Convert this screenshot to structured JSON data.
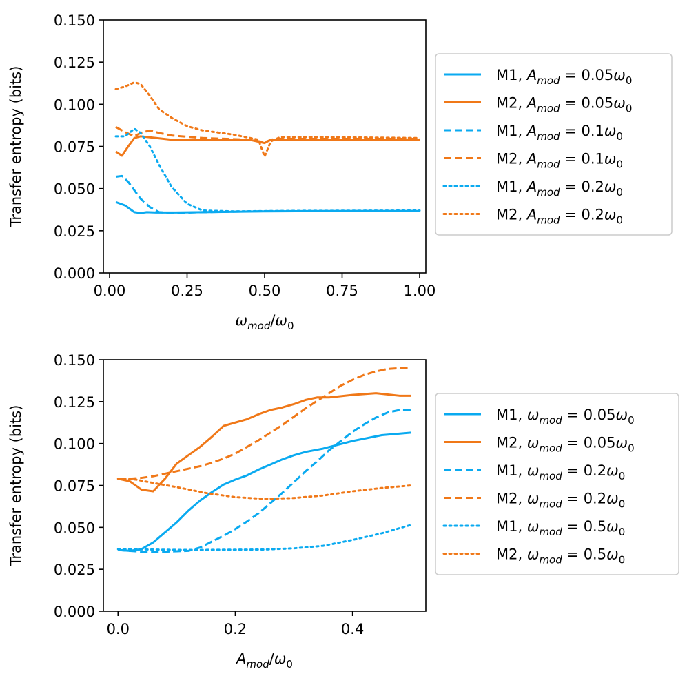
{
  "chart_data": [
    {
      "type": "line",
      "xlabel": "ω_mod/ω_0",
      "ylabel": "Transfer entropy (bits)",
      "xlim": [
        -0.02,
        1.02
      ],
      "ylim": [
        0,
        0.15
      ],
      "xticks": [
        0.0,
        0.25,
        0.5,
        0.75,
        1.0
      ],
      "xtick_labels": [
        "0.00",
        "0.25",
        "0.50",
        "0.75",
        "1.00"
      ],
      "yticks": [
        0.0,
        0.025,
        0.05,
        0.075,
        0.1,
        0.125,
        0.15
      ],
      "ytick_labels": [
        "0.000",
        "0.025",
        "0.050",
        "0.075",
        "0.100",
        "0.125",
        "0.150"
      ],
      "grid": false,
      "legend_position": "outside-right",
      "series": [
        {
          "name": "M1, A_mod = 0.05ω_0",
          "legend_prefix": "M1, ",
          "legend_var": "A",
          "legend_sub": "mod",
          "legend_val": "0.05",
          "color": "#0aaaf0",
          "style": "solid",
          "x": [
            0.02,
            0.05,
            0.08,
            0.1,
            0.12,
            0.15,
            0.2,
            0.3,
            0.5,
            0.7,
            1.0
          ],
          "y": [
            0.042,
            0.04,
            0.036,
            0.0355,
            0.036,
            0.0358,
            0.0358,
            0.036,
            0.0365,
            0.0367,
            0.0367
          ]
        },
        {
          "name": "M2, A_mod = 0.05ω_0",
          "legend_prefix": "M2, ",
          "legend_var": "A",
          "legend_sub": "mod",
          "legend_val": "0.05",
          "color": "#f07818",
          "style": "solid",
          "x": [
            0.02,
            0.04,
            0.06,
            0.08,
            0.1,
            0.15,
            0.2,
            0.3,
            0.45,
            0.5,
            0.52,
            0.6,
            1.0
          ],
          "y": [
            0.072,
            0.0695,
            0.075,
            0.08,
            0.081,
            0.08,
            0.079,
            0.079,
            0.079,
            0.077,
            0.079,
            0.079,
            0.079
          ]
        },
        {
          "name": "M1, A_mod = 0.1ω_0",
          "legend_prefix": "M1, ",
          "legend_var": "A",
          "legend_sub": "mod",
          "legend_val": "0.1",
          "color": "#0aaaf0",
          "style": "dashed",
          "x": [
            0.02,
            0.04,
            0.06,
            0.08,
            0.1,
            0.13,
            0.16,
            0.2,
            0.3,
            0.5,
            1.0
          ],
          "y": [
            0.057,
            0.0575,
            0.054,
            0.049,
            0.044,
            0.039,
            0.036,
            0.0355,
            0.036,
            0.0366,
            0.0367
          ]
        },
        {
          "name": "M2, A_mod = 0.1ω_0",
          "legend_prefix": "M2, ",
          "legend_var": "A",
          "legend_sub": "mod",
          "legend_val": "0.1",
          "color": "#f07818",
          "style": "dashed",
          "x": [
            0.02,
            0.05,
            0.08,
            0.1,
            0.13,
            0.16,
            0.2,
            0.3,
            0.45,
            0.5,
            0.53,
            0.6,
            1.0
          ],
          "y": [
            0.0865,
            0.0835,
            0.081,
            0.083,
            0.0845,
            0.083,
            0.0815,
            0.08,
            0.079,
            0.0775,
            0.0795,
            0.0795,
            0.0795
          ]
        },
        {
          "name": "M1, A_mod = 0.2ω_0",
          "legend_prefix": "M1, ",
          "legend_var": "A",
          "legend_sub": "mod",
          "legend_val": "0.2",
          "color": "#0aaaf0",
          "style": "dotted",
          "x": [
            0.02,
            0.05,
            0.08,
            0.1,
            0.13,
            0.16,
            0.2,
            0.25,
            0.3,
            0.4,
            0.6,
            1.0
          ],
          "y": [
            0.081,
            0.081,
            0.0855,
            0.083,
            0.075,
            0.064,
            0.051,
            0.041,
            0.037,
            0.0365,
            0.0368,
            0.037
          ]
        },
        {
          "name": "M2, A_mod = 0.2ω_0",
          "legend_prefix": "M2, ",
          "legend_var": "A",
          "legend_sub": "mod",
          "legend_val": "0.2",
          "color": "#f07818",
          "style": "dotted",
          "x": [
            0.02,
            0.05,
            0.08,
            0.1,
            0.13,
            0.16,
            0.2,
            0.25,
            0.3,
            0.4,
            0.48,
            0.5,
            0.52,
            0.55,
            0.7,
            1.0
          ],
          "y": [
            0.109,
            0.1105,
            0.113,
            0.112,
            0.105,
            0.097,
            0.092,
            0.087,
            0.0845,
            0.082,
            0.079,
            0.069,
            0.078,
            0.0805,
            0.0805,
            0.08
          ]
        }
      ]
    },
    {
      "type": "line",
      "xlabel": "A_mod/ω_0",
      "ylabel": "Transfer entropy (bits)",
      "xlim": [
        -0.025,
        0.525
      ],
      "ylim": [
        0,
        0.15
      ],
      "xticks": [
        0.0,
        0.2,
        0.4
      ],
      "xtick_labels": [
        "0.0",
        "0.2",
        "0.4"
      ],
      "yticks": [
        0.0,
        0.025,
        0.05,
        0.075,
        0.1,
        0.125,
        0.15
      ],
      "ytick_labels": [
        "0.000",
        "0.025",
        "0.050",
        "0.075",
        "0.100",
        "0.125",
        "0.150"
      ],
      "grid": false,
      "legend_position": "outside-right",
      "series": [
        {
          "name": "M1, ω_mod = 0.05ω_0",
          "legend_prefix": "M1, ",
          "legend_var": "ω",
          "legend_sub": "mod",
          "legend_val": "0.05",
          "color": "#0aaaf0",
          "style": "solid",
          "x": [
            0.0,
            0.02,
            0.04,
            0.06,
            0.08,
            0.1,
            0.12,
            0.14,
            0.16,
            0.18,
            0.2,
            0.22,
            0.24,
            0.26,
            0.28,
            0.3,
            0.32,
            0.35,
            0.4,
            0.45,
            0.5
          ],
          "y": [
            0.0365,
            0.036,
            0.037,
            0.041,
            0.047,
            0.053,
            0.06,
            0.066,
            0.071,
            0.0755,
            0.0785,
            0.081,
            0.0845,
            0.0875,
            0.0905,
            0.093,
            0.095,
            0.097,
            0.1015,
            0.105,
            0.1065
          ]
        },
        {
          "name": "M2, ω_mod = 0.05ω_0",
          "legend_prefix": "M2, ",
          "legend_var": "ω",
          "legend_sub": "mod",
          "legend_val": "0.05",
          "color": "#f07818",
          "style": "solid",
          "x": [
            0.0,
            0.02,
            0.04,
            0.06,
            0.08,
            0.1,
            0.12,
            0.14,
            0.16,
            0.18,
            0.2,
            0.22,
            0.24,
            0.26,
            0.28,
            0.3,
            0.32,
            0.34,
            0.36,
            0.4,
            0.44,
            0.48,
            0.5
          ],
          "y": [
            0.079,
            0.0775,
            0.0725,
            0.0715,
            0.079,
            0.088,
            0.093,
            0.098,
            0.104,
            0.1105,
            0.1125,
            0.1145,
            0.1175,
            0.12,
            0.1215,
            0.1235,
            0.126,
            0.1275,
            0.1275,
            0.129,
            0.13,
            0.1285,
            0.1285
          ]
        },
        {
          "name": "M1, ω_mod = 0.2ω_0",
          "legend_prefix": "M1, ",
          "legend_var": "ω",
          "legend_sub": "mod",
          "legend_val": "0.2",
          "color": "#0aaaf0",
          "style": "dashed",
          "x": [
            0.0,
            0.04,
            0.08,
            0.12,
            0.14,
            0.16,
            0.18,
            0.2,
            0.22,
            0.24,
            0.26,
            0.28,
            0.3,
            0.32,
            0.34,
            0.36,
            0.38,
            0.4,
            0.42,
            0.44,
            0.46,
            0.48,
            0.5
          ],
          "y": [
            0.0365,
            0.0355,
            0.0355,
            0.036,
            0.038,
            0.0415,
            0.045,
            0.049,
            0.0535,
            0.0585,
            0.0645,
            0.0705,
            0.077,
            0.0835,
            0.0895,
            0.096,
            0.1015,
            0.107,
            0.1115,
            0.1155,
            0.1185,
            0.12,
            0.12
          ]
        },
        {
          "name": "M2, ω_mod = 0.2ω_0",
          "legend_prefix": "M2, ",
          "legend_var": "ω",
          "legend_sub": "mod",
          "legend_val": "0.2",
          "color": "#f07818",
          "style": "dashed",
          "x": [
            0.0,
            0.02,
            0.04,
            0.06,
            0.08,
            0.1,
            0.12,
            0.14,
            0.16,
            0.18,
            0.2,
            0.22,
            0.24,
            0.26,
            0.28,
            0.3,
            0.32,
            0.34,
            0.36,
            0.38,
            0.4,
            0.42,
            0.44,
            0.46,
            0.48,
            0.5
          ],
          "y": [
            0.079,
            0.079,
            0.0795,
            0.0805,
            0.082,
            0.0835,
            0.085,
            0.0865,
            0.0885,
            0.091,
            0.094,
            0.098,
            0.102,
            0.1065,
            0.111,
            0.116,
            0.121,
            0.1255,
            0.13,
            0.1345,
            0.138,
            0.141,
            0.143,
            0.1445,
            0.145,
            0.145
          ]
        },
        {
          "name": "M1, ω_mod = 0.5ω_0",
          "legend_prefix": "M1, ",
          "legend_var": "ω",
          "legend_sub": "mod",
          "legend_val": "0.5",
          "color": "#0aaaf0",
          "style": "dotted",
          "x": [
            0.0,
            0.05,
            0.1,
            0.15,
            0.2,
            0.25,
            0.3,
            0.35,
            0.4,
            0.45,
            0.5
          ],
          "y": [
            0.037,
            0.0368,
            0.0366,
            0.0366,
            0.0367,
            0.0368,
            0.0375,
            0.039,
            0.0425,
            0.0465,
            0.0515
          ]
        },
        {
          "name": "M2, ω_mod = 0.5ω_0",
          "legend_prefix": "M2, ",
          "legend_var": "ω",
          "legend_sub": "mod",
          "legend_val": "0.5",
          "color": "#f07818",
          "style": "dotted",
          "x": [
            0.0,
            0.03,
            0.06,
            0.1,
            0.15,
            0.2,
            0.25,
            0.3,
            0.35,
            0.4,
            0.45,
            0.5
          ],
          "y": [
            0.079,
            0.0785,
            0.0765,
            0.074,
            0.0705,
            0.068,
            0.067,
            0.0675,
            0.069,
            0.0715,
            0.0735,
            0.075
          ]
        }
      ]
    }
  ]
}
